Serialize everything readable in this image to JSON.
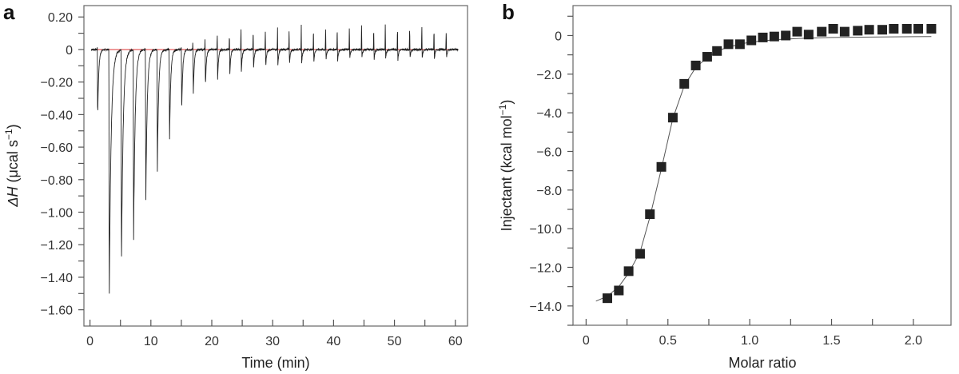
{
  "chart_data": [
    {
      "panel_label": "a",
      "type": "line",
      "xlabel": "Time (min)",
      "ylabel_prefix": "ΔH",
      "ylabel_unit": " (μcal s",
      "ylabel_exp": "−1",
      "ylabel_close": ")",
      "xlim": [
        -1,
        62
      ],
      "ylim": [
        -1.7,
        0.27
      ],
      "xticks": [
        0,
        10,
        20,
        30,
        40,
        50,
        60
      ],
      "xtick_labels": [
        "0",
        "10",
        "20",
        "30",
        "40",
        "50",
        "60"
      ],
      "yticks": [
        0.2,
        0,
        -0.2,
        -0.4,
        -0.6,
        -0.8,
        -1.0,
        -1.2,
        -1.4,
        -1.6
      ],
      "ytick_labels": [
        "0.20",
        "0",
        "−0.20",
        "−0.40",
        "−0.60",
        "−0.80",
        "−1.00",
        "−1.20",
        "−1.40",
        "−1.60"
      ],
      "grid": false,
      "baseline": 0,
      "injection_times_min": [
        1.2,
        3.1,
        5.1,
        7.1,
        9.1,
        11.0,
        13.0,
        15.0,
        16.9,
        18.9,
        20.9,
        22.9,
        24.8,
        26.8,
        28.8,
        30.8,
        32.7,
        34.7,
        36.7,
        38.7,
        40.6,
        42.6,
        44.6,
        46.6,
        48.5,
        50.5,
        52.5,
        54.5,
        56.5,
        58.5
      ],
      "peak_minima": [
        -0.42,
        -1.55,
        -1.37,
        -1.17,
        -0.96,
        -0.75,
        -0.58,
        -0.39,
        -0.29,
        -0.23,
        -0.19,
        -0.16,
        -0.14,
        -0.12,
        -0.11,
        -0.1,
        -0.09,
        -0.09,
        -0.08,
        -0.07,
        -0.08,
        -0.06,
        -0.05,
        -0.07,
        -0.06,
        -0.07,
        -0.05,
        -0.05,
        -0.06,
        -0.05
      ],
      "peak_maxima": [
        0.01,
        0.0,
        0.0,
        0.0,
        0.0,
        0.0,
        0.0,
        0.01,
        0.06,
        0.08,
        0.09,
        0.1,
        0.12,
        0.13,
        0.13,
        0.14,
        0.14,
        0.15,
        0.14,
        0.15,
        0.14,
        0.15,
        0.15,
        0.14,
        0.15,
        0.14,
        0.14,
        0.14,
        0.13,
        0.12
      ]
    },
    {
      "panel_label": "b",
      "type": "scatter",
      "xlabel": "Molar ratio",
      "ylabel_main": "Injectant (kcal mol",
      "ylabel_exp": "−1",
      "ylabel_close": ")",
      "xlim": [
        -0.08,
        2.23
      ],
      "ylim": [
        -15.0,
        1.55
      ],
      "xticks": [
        0,
        0.5,
        1.0,
        1.5,
        2.0
      ],
      "xtick_labels": [
        "0",
        "0.5",
        "1.0",
        "1.5",
        "2.0"
      ],
      "yticks": [
        0,
        -2,
        -4,
        -6,
        -8,
        -10,
        -12,
        -14
      ],
      "ytick_labels": [
        "0",
        "−2.0",
        "−4.0",
        "−6.0",
        "−8.0",
        "−10.0",
        "−12.0",
        "−14.0"
      ],
      "grid": false,
      "marker": "square",
      "marker_color": "#222222",
      "x": [
        0.13,
        0.2,
        0.26,
        0.33,
        0.39,
        0.46,
        0.53,
        0.6,
        0.67,
        0.74,
        0.8,
        0.87,
        0.94,
        1.01,
        1.08,
        1.15,
        1.22,
        1.29,
        1.36,
        1.44,
        1.51,
        1.58,
        1.66,
        1.73,
        1.81,
        1.88,
        1.96,
        2.03,
        2.11
      ],
      "y": [
        -13.6,
        -13.2,
        -12.2,
        -11.3,
        -9.25,
        -6.8,
        -4.25,
        -2.5,
        -1.55,
        -1.1,
        -0.8,
        -0.45,
        -0.45,
        -0.25,
        -0.1,
        -0.05,
        0.0,
        0.2,
        0.05,
        0.2,
        0.35,
        0.2,
        0.25,
        0.3,
        0.3,
        0.35,
        0.35,
        0.35,
        0.35
      ],
      "fit_x": [
        0.06,
        0.13,
        0.2,
        0.26,
        0.33,
        0.39,
        0.46,
        0.53,
        0.6,
        0.67,
        0.74,
        0.8,
        0.87,
        0.94,
        1.0,
        1.15,
        1.3,
        1.5,
        1.8,
        2.11
      ],
      "fit_y": [
        -13.75,
        -13.5,
        -13.0,
        -12.3,
        -11.2,
        -9.4,
        -6.9,
        -4.3,
        -2.6,
        -1.65,
        -1.15,
        -0.8,
        -0.6,
        -0.45,
        -0.35,
        -0.22,
        -0.15,
        -0.1,
        -0.07,
        -0.05
      ]
    }
  ]
}
